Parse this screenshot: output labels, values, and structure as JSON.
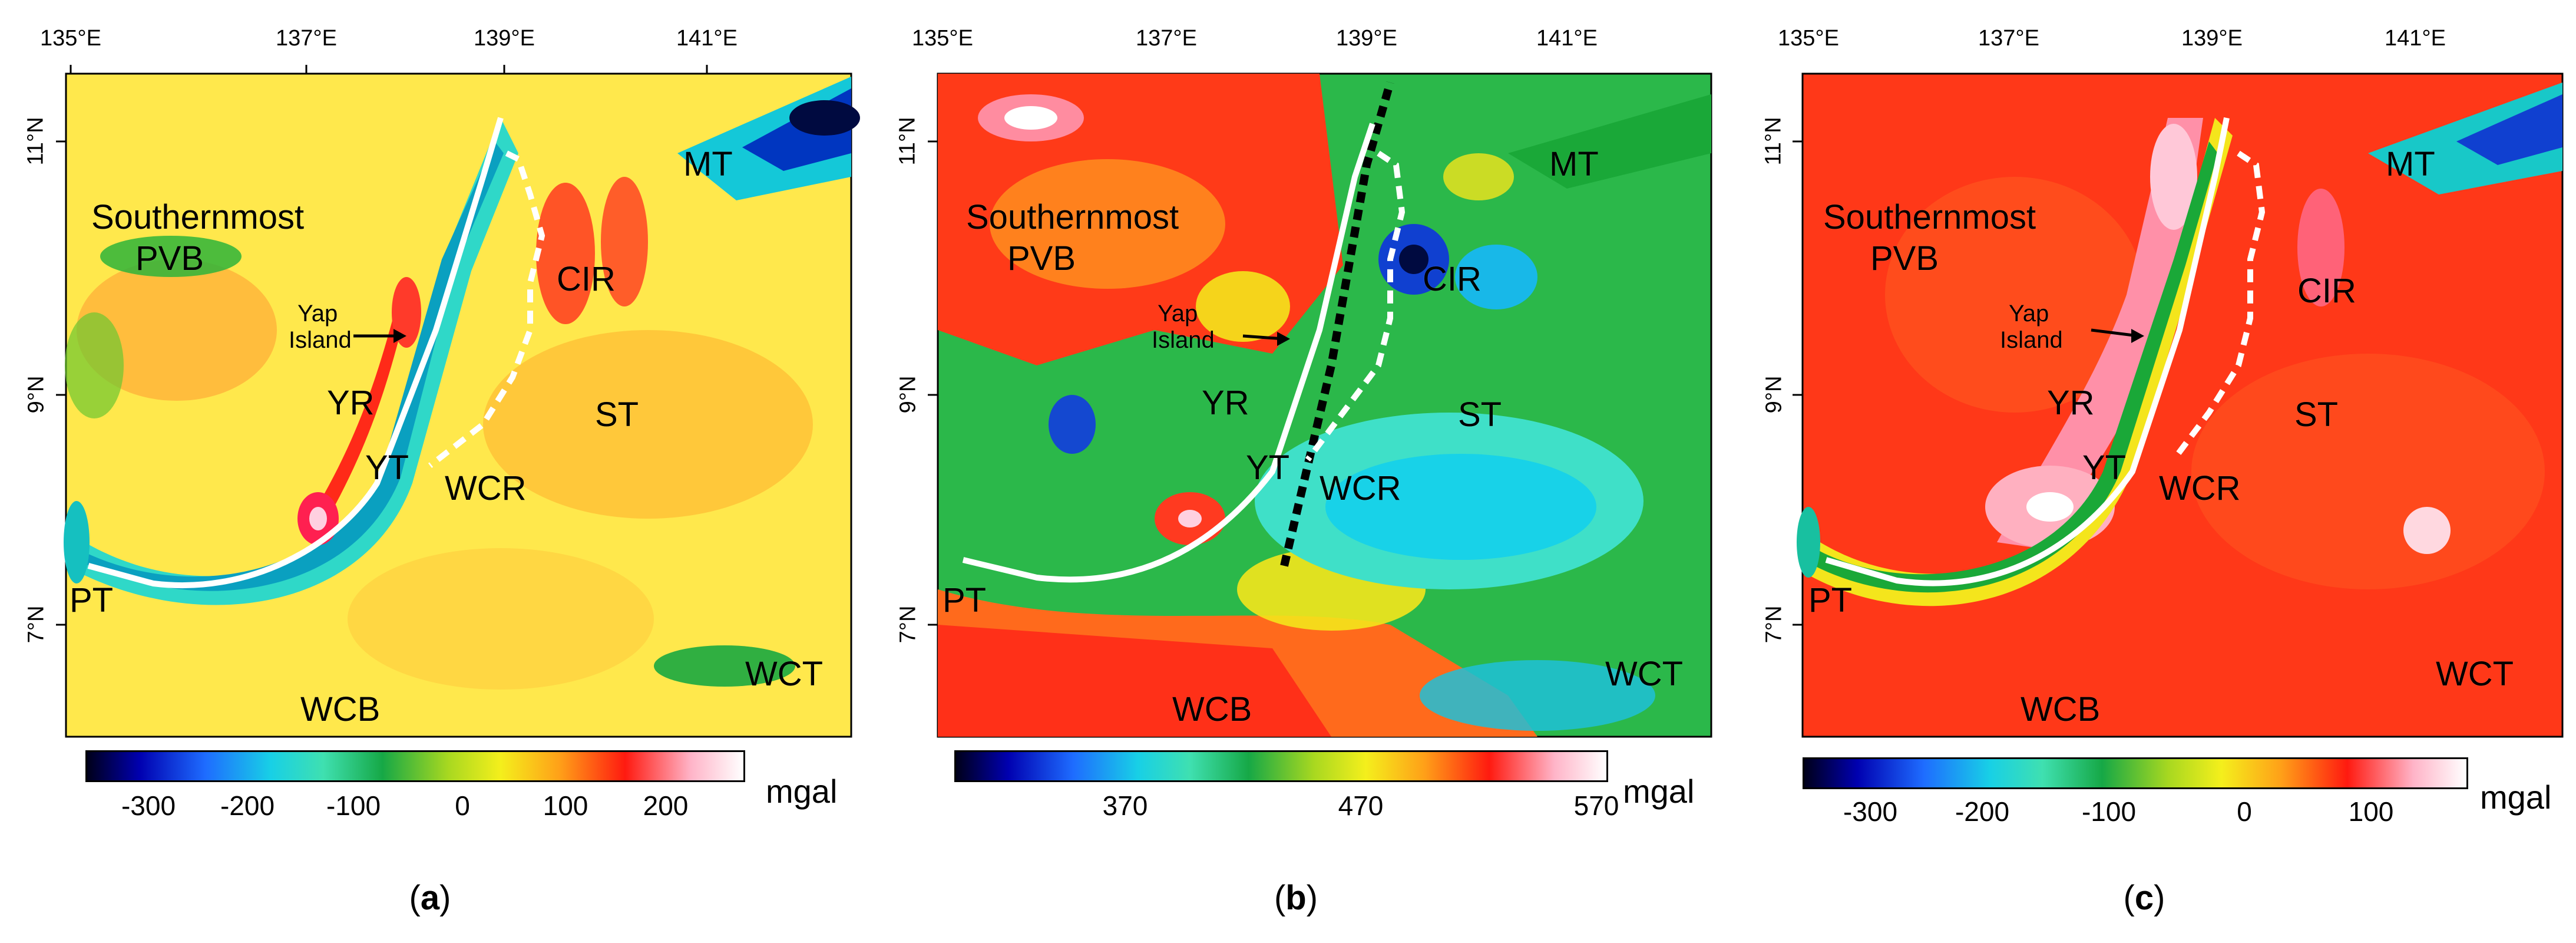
{
  "panels": [
    {
      "id": "a",
      "label_open": "(",
      "label_letter": "a",
      "label_close": ")",
      "lon_ticks": [
        "135°E",
        "137°E",
        "139°E",
        "141°E"
      ],
      "lat_ticks": [
        "11°N",
        "9°N",
        "7°N"
      ],
      "features": {
        "southernmost": "Southernmost",
        "pvb": "PVB",
        "yap_island_line1": "Yap",
        "yap_island_line2": "Island",
        "yr": "YR",
        "yt": "YT",
        "wcr": "WCR",
        "cir": "CIR",
        "st": "ST",
        "mt": "MT",
        "pt": "PT",
        "wcb": "WCB",
        "wct": "WCT"
      },
      "colorbar": {
        "ticks": [
          "-300",
          "-200",
          "-100",
          "0",
          "100",
          "200"
        ],
        "unit": "mgal"
      }
    },
    {
      "id": "b",
      "label_open": "(",
      "label_letter": "b",
      "label_close": ")",
      "lon_ticks": [
        "135°E",
        "137°E",
        "139°E",
        "141°E"
      ],
      "lat_ticks": [
        "11°N",
        "9°N",
        "7°N"
      ],
      "features": {
        "southernmost": "Southernmost",
        "pvb": "PVB",
        "yap_island_line1": "Yap",
        "yap_island_line2": "Island",
        "yr": "YR",
        "yt": "YT",
        "wcr": "WCR",
        "cir": "CIR",
        "st": "ST",
        "mt": "MT",
        "pt": "PT",
        "wcb": "WCB",
        "wct": "WCT"
      },
      "colorbar": {
        "ticks": [
          "370",
          "470",
          "570"
        ],
        "unit": "mgal"
      }
    },
    {
      "id": "c",
      "label_open": "(",
      "label_letter": "c",
      "label_close": ")",
      "lon_ticks": [
        "135°E",
        "137°E",
        "139°E",
        "141°E"
      ],
      "lat_ticks": [
        "11°N",
        "9°N",
        "7°N"
      ],
      "features": {
        "southernmost": "Southernmost",
        "pvb": "PVB",
        "yap_island_line1": "Yap",
        "yap_island_line2": "Island",
        "yr": "YR",
        "yt": "YT",
        "wcr": "WCR",
        "cir": "CIR",
        "st": "ST",
        "mt": "MT",
        "pt": "PT",
        "wcb": "WCB",
        "wct": "WCT"
      },
      "colorbar": {
        "ticks": [
          "-300",
          "-200",
          "-100",
          "0",
          "100"
        ],
        "unit": "mgal"
      }
    }
  ]
}
